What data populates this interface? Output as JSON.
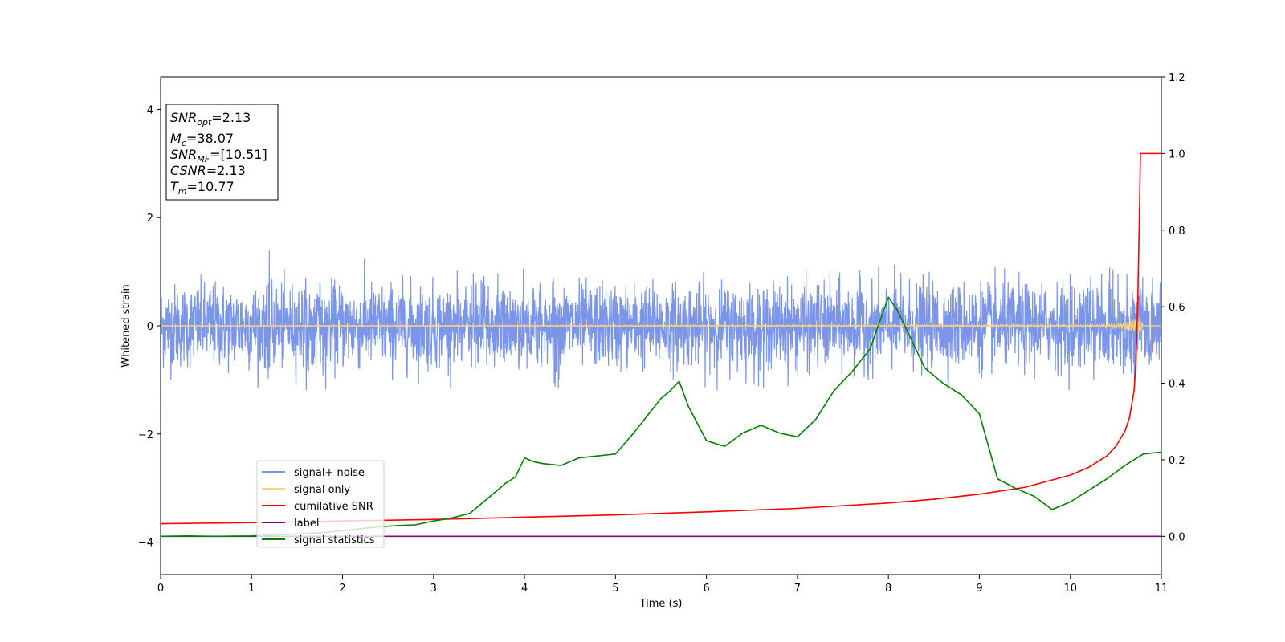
{
  "chart_data": {
    "type": "line",
    "xlabel": "Time (s)",
    "ylabel": "Whitened strain",
    "xlim": [
      0,
      11
    ],
    "ylim_left": [
      -4.6,
      4.6
    ],
    "ylim_right": [
      -0.1,
      1.2
    ],
    "x_ticks": [
      "0",
      "1",
      "2",
      "3",
      "4",
      "5",
      "6",
      "7",
      "8",
      "9",
      "10",
      "11"
    ],
    "y_left_ticks": [
      "−4",
      "−2",
      "0",
      "2",
      "4"
    ],
    "y_right_ticks": [
      "0.0",
      "0.2",
      "0.4",
      "0.6",
      "0.8",
      "1.0",
      "1.2"
    ],
    "grid": false,
    "info_box": {
      "snr_opt": {
        "sym": "SNR",
        "sub": "opt",
        "value": "=2.13"
      },
      "mc": {
        "sym": "M",
        "sub": "c",
        "value": "=38.07"
      },
      "snr_mf": {
        "sym": "SNR",
        "sub": "MF",
        "value": "=[10.51]"
      },
      "csnr": {
        "sym": "CSNR",
        "sub": "",
        "value": "=2.13"
      },
      "tm": {
        "sym": "T",
        "sub": "m",
        "value": "=10.77"
      }
    },
    "legend": {
      "placement": "lower-left",
      "entries": [
        {
          "label": "signal+ noise",
          "color": "#7b95e8"
        },
        {
          "label": "signal only",
          "color": "#ffd27f"
        },
        {
          "label": "cumilative SNR",
          "color": "#ff0000"
        },
        {
          "label": "label",
          "color": "#800080"
        },
        {
          "label": "signal statistics",
          "color": "#008000"
        }
      ]
    },
    "series": [
      {
        "name": "signal+ noise",
        "axis": "left",
        "color": "#7b95e8",
        "description_values": {
          "amplitude_envelope": [
            -1.2,
            1.4
          ],
          "duration": [
            0,
            11
          ]
        }
      },
      {
        "name": "signal only",
        "axis": "left",
        "color": "#ffd27f",
        "x": [
          0,
          10.3,
          10.5,
          10.6,
          10.7,
          10.77,
          10.8,
          11
        ],
        "y_envelope": [
          0.005,
          0.02,
          0.04,
          0.07,
          0.12,
          0.18,
          0.0,
          0.0
        ]
      },
      {
        "name": "cumilative SNR",
        "axis": "right",
        "color": "#ff0000",
        "x": [
          0,
          1,
          2,
          3,
          4,
          5,
          6,
          7,
          8,
          8.5,
          9,
          9.5,
          10,
          10.2,
          10.4,
          10.5,
          10.6,
          10.65,
          10.7,
          10.72,
          10.74,
          10.76,
          10.77,
          10.8,
          11
        ],
        "y": [
          0.033,
          0.036,
          0.04,
          0.044,
          0.05,
          0.056,
          0.064,
          0.073,
          0.087,
          0.097,
          0.11,
          0.128,
          0.16,
          0.18,
          0.21,
          0.235,
          0.275,
          0.31,
          0.38,
          0.45,
          0.6,
          0.85,
          1.0,
          1.0,
          1.0
        ]
      },
      {
        "name": "label",
        "axis": "right",
        "color": "#800080",
        "x": [
          0,
          11
        ],
        "y": [
          0,
          0
        ]
      },
      {
        "name": "signal statistics",
        "axis": "right",
        "color": "#008000",
        "x": [
          0,
          0.3,
          0.6,
          1.0,
          1.2,
          1.5,
          1.8,
          2.0,
          2.2,
          2.4,
          2.6,
          2.8,
          3.0,
          3.2,
          3.4,
          3.6,
          3.8,
          3.9,
          4.0,
          4.1,
          4.2,
          4.4,
          4.6,
          4.8,
          5.0,
          5.2,
          5.4,
          5.5,
          5.6,
          5.7,
          5.8,
          6.0,
          6.2,
          6.4,
          6.6,
          6.8,
          7.0,
          7.2,
          7.4,
          7.6,
          7.8,
          8.0,
          8.1,
          8.2,
          8.4,
          8.6,
          8.8,
          9.0,
          9.2,
          9.4,
          9.6,
          9.8,
          10.0,
          10.2,
          10.4,
          10.6,
          10.8,
          11.0
        ],
        "y": [
          0.0,
          0.001,
          0.0,
          0.001,
          0.003,
          0.006,
          0.01,
          0.015,
          0.02,
          0.025,
          0.028,
          0.03,
          0.04,
          0.048,
          0.06,
          0.1,
          0.14,
          0.155,
          0.205,
          0.195,
          0.19,
          0.185,
          0.205,
          0.21,
          0.215,
          0.27,
          0.33,
          0.36,
          0.38,
          0.405,
          0.34,
          0.25,
          0.235,
          0.27,
          0.29,
          0.27,
          0.26,
          0.305,
          0.38,
          0.43,
          0.49,
          0.625,
          0.59,
          0.54,
          0.44,
          0.4,
          0.37,
          0.32,
          0.15,
          0.125,
          0.105,
          0.07,
          0.09,
          0.12,
          0.15,
          0.185,
          0.215,
          0.22
        ]
      }
    ]
  }
}
